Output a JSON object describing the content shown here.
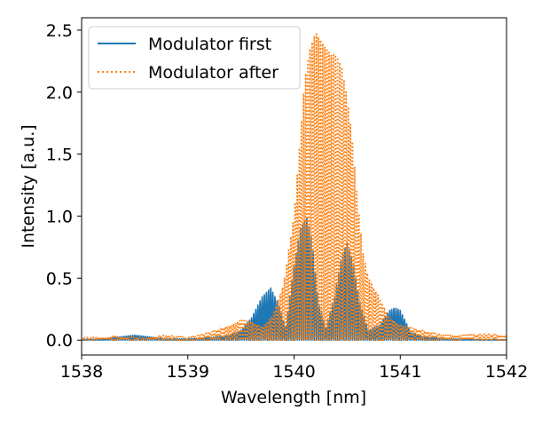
{
  "chart_data": {
    "type": "line",
    "title": "",
    "xlabel": "Wavelength [nm]",
    "ylabel": "Intensity [a.u.]",
    "xlim": [
      1538,
      1542
    ],
    "ylim": [
      -0.12,
      2.6
    ],
    "xticks": [
      1538,
      1539,
      1540,
      1541,
      1542
    ],
    "xtick_labels": [
      "1538",
      "1539",
      "1540",
      "1541",
      "1542"
    ],
    "yticks": [
      0.0,
      0.5,
      1.0,
      1.5,
      2.0,
      2.5
    ],
    "ytick_labels": [
      "0.0",
      "0.5",
      "1.0",
      "1.5",
      "2.0",
      "2.5"
    ],
    "grid": false,
    "legend_position": "top-left",
    "fringe_period_nm": 0.02,
    "series": [
      {
        "name": "Modulator first",
        "color": "#1f77b4",
        "style": "solid",
        "envelope": {
          "x": [
            1538.0,
            1538.2,
            1538.4,
            1538.5,
            1538.6,
            1538.8,
            1539.0,
            1539.2,
            1539.4,
            1539.5,
            1539.6,
            1539.7,
            1539.78,
            1539.85,
            1539.92,
            1540.0,
            1540.06,
            1540.12,
            1540.17,
            1540.23,
            1540.3,
            1540.38,
            1540.45,
            1540.5,
            1540.55,
            1540.62,
            1540.7,
            1540.8,
            1540.9,
            1540.95,
            1541.0,
            1541.05,
            1541.1,
            1541.2,
            1541.3,
            1541.5,
            1541.8,
            1542.0
          ],
          "y": [
            0.005,
            0.01,
            0.03,
            0.04,
            0.03,
            0.01,
            0.01,
            0.02,
            0.04,
            0.08,
            0.18,
            0.35,
            0.42,
            0.3,
            0.1,
            0.6,
            0.9,
            0.99,
            0.8,
            0.3,
            0.1,
            0.35,
            0.68,
            0.78,
            0.65,
            0.3,
            0.08,
            0.12,
            0.24,
            0.26,
            0.24,
            0.15,
            0.06,
            0.03,
            0.02,
            0.01,
            0.005,
            0.005
          ]
        }
      },
      {
        "name": "Modulator after",
        "color": "#ff7f0e",
        "style": "dotted",
        "envelope": {
          "x": [
            1538.0,
            1538.3,
            1538.6,
            1538.8,
            1539.0,
            1539.2,
            1539.4,
            1539.5,
            1539.6,
            1539.7,
            1539.8,
            1539.9,
            1540.0,
            1540.05,
            1540.1,
            1540.15,
            1540.2,
            1540.25,
            1540.3,
            1540.35,
            1540.4,
            1540.45,
            1540.5,
            1540.55,
            1540.6,
            1540.65,
            1540.7,
            1540.75,
            1540.8,
            1540.9,
            1541.0,
            1541.2,
            1541.4,
            1541.6,
            1541.8,
            1542.0
          ],
          "y": [
            0.02,
            0.03,
            0.02,
            0.04,
            0.02,
            0.06,
            0.12,
            0.16,
            0.15,
            0.1,
            0.2,
            0.45,
            1.0,
            1.55,
            2.1,
            2.35,
            2.48,
            2.42,
            2.35,
            2.3,
            2.3,
            2.2,
            1.95,
            1.6,
            1.1,
            0.7,
            0.5,
            0.42,
            0.35,
            0.18,
            0.12,
            0.08,
            0.04,
            0.04,
            0.05,
            0.04
          ]
        }
      }
    ]
  }
}
